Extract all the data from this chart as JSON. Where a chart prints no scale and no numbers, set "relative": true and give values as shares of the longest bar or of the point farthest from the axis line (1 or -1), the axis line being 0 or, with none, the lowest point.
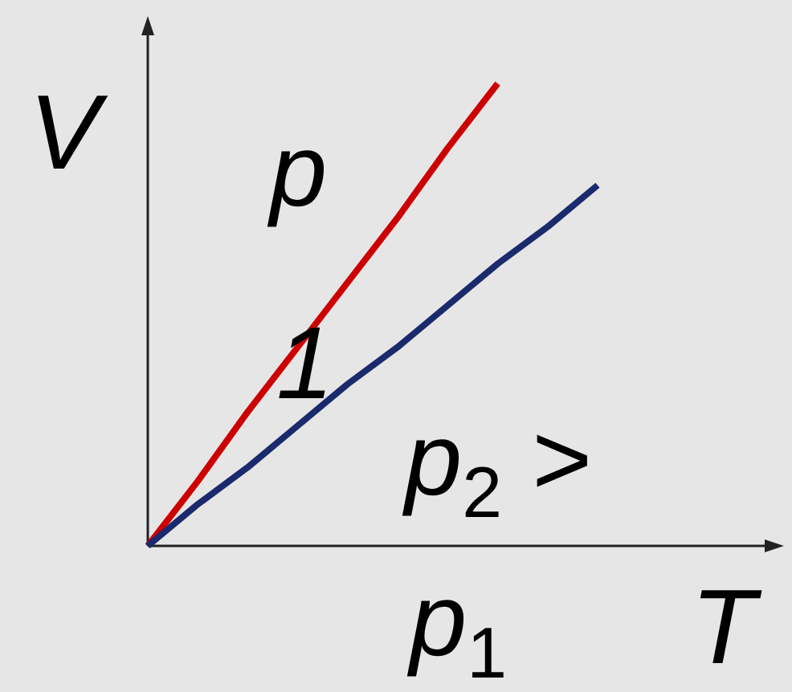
{
  "chart_data": {
    "type": "line",
    "relative": true,
    "xlabel": "T",
    "ylabel": "V",
    "categories": [
      null,
      null,
      null,
      null,
      null,
      null,
      null,
      null,
      null,
      null
    ],
    "series": [
      {
        "color": "#cc0000",
        "values": [
          0,
          0.14,
          0.29,
          0.43,
          0.57,
          0.71,
          0.86,
          1,
          null,
          null
        ]
      },
      {
        "color": "#1a2a6c",
        "values": [
          0,
          0.09,
          0.17,
          0.26,
          0.35,
          0.43,
          0.52,
          0.61,
          0.69,
          0.78
        ]
      }
    ],
    "annotations": [
      "p",
      "1",
      "p$_{2}$ >",
      "p$_{1}$"
    ],
    "grid": false,
    "tick_labels": false,
    "marker": "none",
    "line_style": "solid"
  }
}
